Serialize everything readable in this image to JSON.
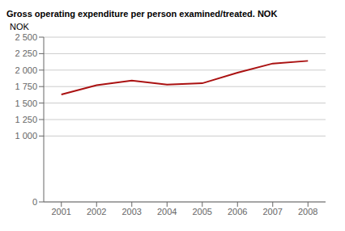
{
  "chart_data": {
    "type": "line",
    "title": "Gross operating expenditure per person examined/treated. NOK",
    "ylabel": "NOK",
    "x": [
      2001,
      2002,
      2003,
      2004,
      2005,
      2006,
      2007,
      2008
    ],
    "values": [
      1630,
      1770,
      1840,
      1780,
      1800,
      1960,
      2100,
      2140
    ],
    "color": "#aa1111",
    "xlim": [
      2000.5,
      2008.5
    ],
    "xticks": [
      2001,
      2002,
      2003,
      2004,
      2005,
      2006,
      2007,
      2008
    ],
    "ylim": [
      0,
      2500
    ],
    "yticks": [
      0,
      {
        "value": 1000,
        "label": "1 000"
      },
      {
        "value": 1250,
        "label": "1 250"
      },
      {
        "value": 1500,
        "label": "1 500"
      },
      {
        "value": 1750,
        "label": "1 750"
      },
      {
        "value": 2000,
        "label": "2 000"
      },
      {
        "value": 2250,
        "label": "2 250"
      },
      {
        "value": 2500,
        "label": "2 500"
      }
    ],
    "grid": "y"
  }
}
